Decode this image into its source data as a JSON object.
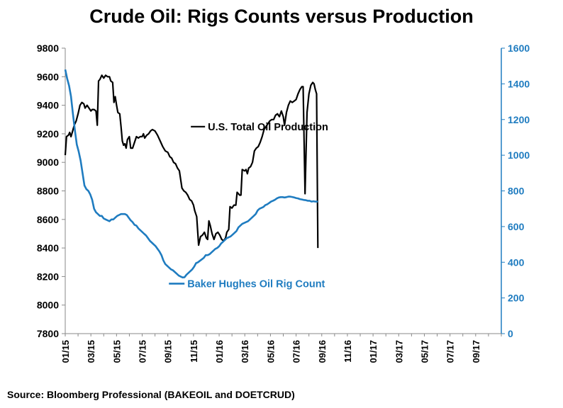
{
  "colors": {
    "production": "#000000",
    "rigs": "#1f7cc0"
  },
  "chart_data": {
    "type": "line",
    "title": "Crude Oil: Rigs Counts versus Production",
    "source": "Source: Bloomberg Professional  (BAKEOIL and DOETCRUD)",
    "x_range": [
      "2015-01",
      "2017-11"
    ],
    "x_ticks": [
      "01/15",
      "03/15",
      "05/15",
      "07/15",
      "09/15",
      "11/15",
      "01/16",
      "03/16",
      "05/16",
      "07/16",
      "09/16",
      "11/16",
      "01/17",
      "03/17",
      "05/17",
      "07/17",
      "09/17"
    ],
    "y_left": {
      "min": 7800,
      "max": 9800,
      "step": 200,
      "ticks": [
        "7800",
        "8000",
        "8200",
        "8400",
        "8600",
        "8800",
        "9000",
        "9200",
        "9400",
        "9600",
        "9800"
      ]
    },
    "y_right": {
      "min": 0,
      "max": 1600,
      "step": 200,
      "ticks": [
        "0",
        "200",
        "400",
        "600",
        "800",
        "1000",
        "1200",
        "1400",
        "1600"
      ]
    },
    "grid": false,
    "series": [
      {
        "name": "U.S. Total Oil Production",
        "axis": "left",
        "points": [
          [
            0.0,
            9050
          ],
          [
            0.1,
            9180
          ],
          [
            0.25,
            9190
          ],
          [
            0.35,
            9210
          ],
          [
            0.45,
            9180
          ],
          [
            0.55,
            9210
          ],
          [
            0.7,
            9260
          ],
          [
            0.85,
            9290
          ],
          [
            1.0,
            9340
          ],
          [
            1.15,
            9400
          ],
          [
            1.3,
            9420
          ],
          [
            1.45,
            9410
          ],
          [
            1.55,
            9380
          ],
          [
            1.7,
            9400
          ],
          [
            1.85,
            9380
          ],
          [
            2.0,
            9360
          ],
          [
            2.1,
            9370
          ],
          [
            2.25,
            9370
          ],
          [
            2.4,
            9360
          ],
          [
            2.5,
            9260
          ],
          [
            2.6,
            9570
          ],
          [
            2.7,
            9580
          ],
          [
            2.85,
            9610
          ],
          [
            3.0,
            9590
          ],
          [
            3.15,
            9610
          ],
          [
            3.3,
            9600
          ],
          [
            3.45,
            9600
          ],
          [
            3.55,
            9570
          ],
          [
            3.7,
            9560
          ],
          [
            3.8,
            9420
          ],
          [
            3.9,
            9460
          ],
          [
            4.0,
            9400
          ],
          [
            4.1,
            9350
          ],
          [
            4.25,
            9340
          ],
          [
            4.35,
            9250
          ],
          [
            4.45,
            9150
          ],
          [
            4.55,
            9120
          ],
          [
            4.65,
            9130
          ],
          [
            4.75,
            9100
          ],
          [
            4.85,
            9160
          ],
          [
            5.0,
            9180
          ],
          [
            5.1,
            9100
          ],
          [
            5.25,
            9100
          ],
          [
            5.4,
            9140
          ],
          [
            5.55,
            9180
          ],
          [
            5.7,
            9170
          ],
          [
            5.85,
            9180
          ],
          [
            6.0,
            9180
          ],
          [
            6.1,
            9200
          ],
          [
            6.2,
            9170
          ],
          [
            6.35,
            9190
          ],
          [
            6.5,
            9200
          ],
          [
            6.65,
            9220
          ],
          [
            6.8,
            9230
          ],
          [
            7.0,
            9220
          ],
          [
            7.2,
            9190
          ],
          [
            7.4,
            9150
          ],
          [
            7.6,
            9110
          ],
          [
            7.8,
            9080
          ],
          [
            8.0,
            9070
          ],
          [
            8.15,
            9040
          ],
          [
            8.3,
            9030
          ],
          [
            8.45,
            9000
          ],
          [
            8.6,
            8990
          ],
          [
            8.75,
            8960
          ],
          [
            8.9,
            8940
          ],
          [
            9.0,
            8880
          ],
          [
            9.1,
            8820
          ],
          [
            9.25,
            8800
          ],
          [
            9.4,
            8790
          ],
          [
            9.55,
            8770
          ],
          [
            9.7,
            8740
          ],
          [
            9.85,
            8730
          ],
          [
            10.0,
            8700
          ],
          [
            10.1,
            8660
          ],
          [
            10.25,
            8620
          ],
          [
            10.4,
            8420
          ],
          [
            10.55,
            8480
          ],
          [
            10.7,
            8490
          ],
          [
            10.85,
            8510
          ],
          [
            11.0,
            8470
          ],
          [
            11.1,
            8460
          ],
          [
            11.2,
            8590
          ],
          [
            11.3,
            8560
          ],
          [
            11.45,
            8500
          ],
          [
            11.6,
            8460
          ],
          [
            11.75,
            8500
          ],
          [
            11.9,
            8510
          ],
          [
            12.05,
            8490
          ],
          [
            12.2,
            8460
          ],
          [
            12.35,
            8450
          ],
          [
            12.5,
            8470
          ],
          [
            12.6,
            8510
          ],
          [
            12.75,
            8530
          ],
          [
            12.85,
            8690
          ],
          [
            13.0,
            8680
          ],
          [
            13.15,
            8700
          ],
          [
            13.3,
            8700
          ],
          [
            13.4,
            8790
          ],
          [
            13.5,
            8780
          ],
          [
            13.6,
            8770
          ],
          [
            13.7,
            8770
          ],
          [
            13.8,
            8950
          ],
          [
            14.0,
            8940
          ],
          [
            14.1,
            8950
          ],
          [
            14.2,
            8920
          ],
          [
            14.3,
            8960
          ],
          [
            14.45,
            8970
          ],
          [
            14.6,
            9000
          ],
          [
            14.75,
            9080
          ],
          [
            14.9,
            9100
          ],
          [
            15.05,
            9110
          ],
          [
            15.2,
            9140
          ],
          [
            15.35,
            9180
          ],
          [
            15.5,
            9230
          ],
          [
            15.65,
            9250
          ],
          [
            15.8,
            9270
          ],
          [
            15.95,
            9290
          ],
          [
            16.1,
            9300
          ],
          [
            16.25,
            9300
          ],
          [
            16.4,
            9330
          ],
          [
            16.55,
            9340
          ],
          [
            16.7,
            9320
          ],
          [
            16.85,
            9360
          ],
          [
            17.0,
            9320
          ],
          [
            17.1,
            9260
          ],
          [
            17.25,
            9350
          ],
          [
            17.4,
            9400
          ],
          [
            17.55,
            9430
          ],
          [
            17.7,
            9420
          ],
          [
            17.85,
            9430
          ],
          [
            18.0,
            9440
          ],
          [
            18.15,
            9480
          ],
          [
            18.3,
            9510
          ],
          [
            18.45,
            9530
          ],
          [
            18.55,
            9530
          ],
          [
            18.7,
            8780
          ],
          [
            18.85,
            9350
          ],
          [
            19.0,
            9480
          ],
          [
            19.15,
            9540
          ],
          [
            19.3,
            9560
          ],
          [
            19.4,
            9550
          ],
          [
            19.5,
            9510
          ],
          [
            19.6,
            9480
          ],
          [
            19.7,
            8400
          ]
        ]
      },
      {
        "name": "Baker Hughes Oil Rig Count",
        "axis": "right",
        "points": [
          [
            0.0,
            1480
          ],
          [
            0.15,
            1430
          ],
          [
            0.3,
            1390
          ],
          [
            0.45,
            1330
          ],
          [
            0.6,
            1230
          ],
          [
            0.75,
            1140
          ],
          [
            0.9,
            1060
          ],
          [
            1.05,
            1020
          ],
          [
            1.2,
            970
          ],
          [
            1.35,
            900
          ],
          [
            1.5,
            830
          ],
          [
            1.65,
            810
          ],
          [
            1.8,
            800
          ],
          [
            1.95,
            780
          ],
          [
            2.1,
            750
          ],
          [
            2.25,
            700
          ],
          [
            2.4,
            680
          ],
          [
            2.55,
            670
          ],
          [
            2.7,
            660
          ],
          [
            2.85,
            660
          ],
          [
            3.0,
            645
          ],
          [
            3.15,
            640
          ],
          [
            3.3,
            635
          ],
          [
            3.45,
            630
          ],
          [
            3.6,
            640
          ],
          [
            3.75,
            640
          ],
          [
            3.9,
            650
          ],
          [
            4.05,
            660
          ],
          [
            4.2,
            665
          ],
          [
            4.35,
            670
          ],
          [
            4.5,
            670
          ],
          [
            4.65,
            670
          ],
          [
            4.8,
            665
          ],
          [
            4.95,
            650
          ],
          [
            5.1,
            635
          ],
          [
            5.25,
            625
          ],
          [
            5.4,
            610
          ],
          [
            5.55,
            605
          ],
          [
            5.7,
            590
          ],
          [
            5.85,
            580
          ],
          [
            6.0,
            570
          ],
          [
            6.15,
            560
          ],
          [
            6.3,
            550
          ],
          [
            6.45,
            535
          ],
          [
            6.6,
            520
          ],
          [
            6.75,
            510
          ],
          [
            6.9,
            500
          ],
          [
            7.05,
            490
          ],
          [
            7.2,
            475
          ],
          [
            7.35,
            460
          ],
          [
            7.5,
            440
          ],
          [
            7.65,
            410
          ],
          [
            7.8,
            390
          ],
          [
            7.95,
            380
          ],
          [
            8.1,
            370
          ],
          [
            8.25,
            360
          ],
          [
            8.4,
            355
          ],
          [
            8.55,
            345
          ],
          [
            8.7,
            335
          ],
          [
            8.85,
            325
          ],
          [
            9.0,
            320
          ],
          [
            9.15,
            315
          ],
          [
            9.3,
            316
          ],
          [
            9.45,
            330
          ],
          [
            9.6,
            340
          ],
          [
            9.75,
            350
          ],
          [
            9.9,
            360
          ],
          [
            10.05,
            375
          ],
          [
            10.2,
            395
          ],
          [
            10.35,
            400
          ],
          [
            10.5,
            408
          ],
          [
            10.65,
            416
          ],
          [
            10.8,
            425
          ],
          [
            10.95,
            440
          ],
          [
            11.1,
            440
          ],
          [
            11.25,
            445
          ],
          [
            11.4,
            455
          ],
          [
            11.55,
            465
          ],
          [
            11.7,
            475
          ],
          [
            11.85,
            480
          ],
          [
            12.0,
            490
          ],
          [
            12.15,
            505
          ],
          [
            12.3,
            515
          ],
          [
            12.45,
            525
          ],
          [
            12.6,
            535
          ],
          [
            12.75,
            540
          ],
          [
            12.9,
            545
          ],
          [
            13.05,
            555
          ],
          [
            13.2,
            565
          ],
          [
            13.35,
            575
          ],
          [
            13.5,
            595
          ],
          [
            13.65,
            605
          ],
          [
            13.8,
            615
          ],
          [
            13.95,
            620
          ],
          [
            14.1,
            625
          ],
          [
            14.25,
            630
          ],
          [
            14.4,
            640
          ],
          [
            14.55,
            650
          ],
          [
            14.7,
            660
          ],
          [
            14.85,
            670
          ],
          [
            15.0,
            690
          ],
          [
            15.15,
            700
          ],
          [
            15.3,
            705
          ],
          [
            15.45,
            710
          ],
          [
            15.6,
            720
          ],
          [
            15.75,
            725
          ],
          [
            15.9,
            732
          ],
          [
            16.05,
            740
          ],
          [
            16.2,
            745
          ],
          [
            16.35,
            750
          ],
          [
            16.5,
            758
          ],
          [
            16.65,
            763
          ],
          [
            16.8,
            765
          ],
          [
            16.95,
            765
          ],
          [
            17.1,
            763
          ],
          [
            17.25,
            765
          ],
          [
            17.4,
            768
          ],
          [
            17.55,
            768
          ],
          [
            17.7,
            766
          ],
          [
            17.85,
            763
          ],
          [
            18.0,
            760
          ],
          [
            18.15,
            758
          ],
          [
            18.3,
            754
          ],
          [
            18.45,
            752
          ],
          [
            18.6,
            749
          ],
          [
            18.75,
            748
          ],
          [
            18.9,
            745
          ],
          [
            19.05,
            745
          ],
          [
            19.2,
            740
          ],
          [
            19.35,
            742
          ],
          [
            19.5,
            740
          ],
          [
            19.6,
            740
          ],
          [
            19.7,
            740
          ]
        ]
      }
    ]
  }
}
